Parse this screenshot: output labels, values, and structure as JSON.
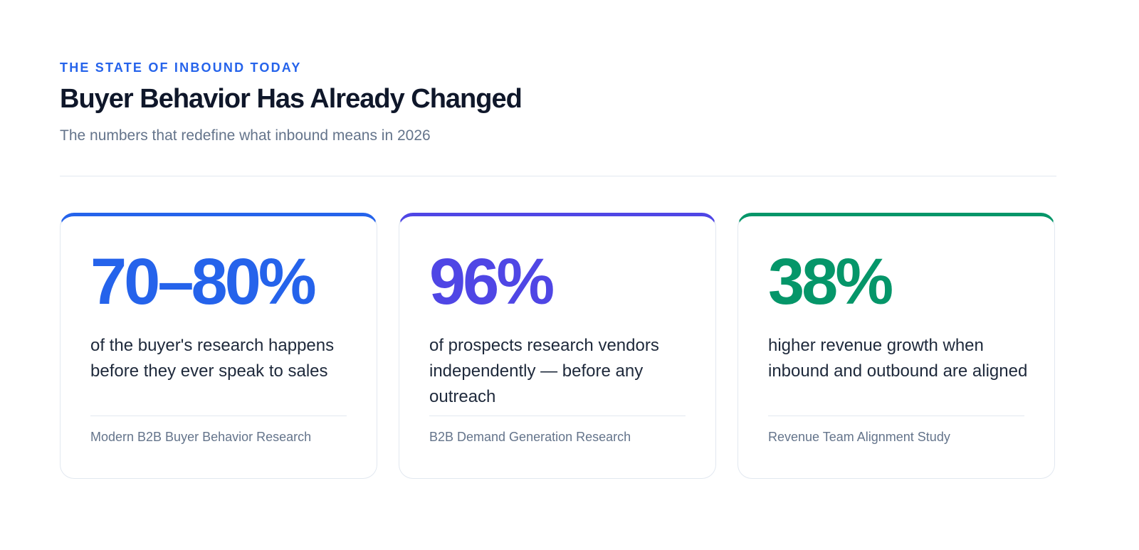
{
  "header": {
    "eyebrow": "THE STATE OF INBOUND TODAY",
    "title": "Buyer Behavior Has Already Changed",
    "subtitle": "The numbers that redefine what inbound means in 2026"
  },
  "cards": [
    {
      "stat": "70–80%",
      "description": "of the buyer's research happens before they ever speak to sales",
      "source": "Modern B2B Buyer Behavior Research",
      "color": "#2563eb"
    },
    {
      "stat": "96%",
      "description": "of prospects research vendors independently — before any outreach",
      "source": "B2B Demand Generation Research",
      "color": "#4f46e5"
    },
    {
      "stat": "38%",
      "description": "higher revenue growth when inbound and outbound are aligned",
      "source": "Revenue Team Alignment Study",
      "color": "#059669"
    }
  ]
}
